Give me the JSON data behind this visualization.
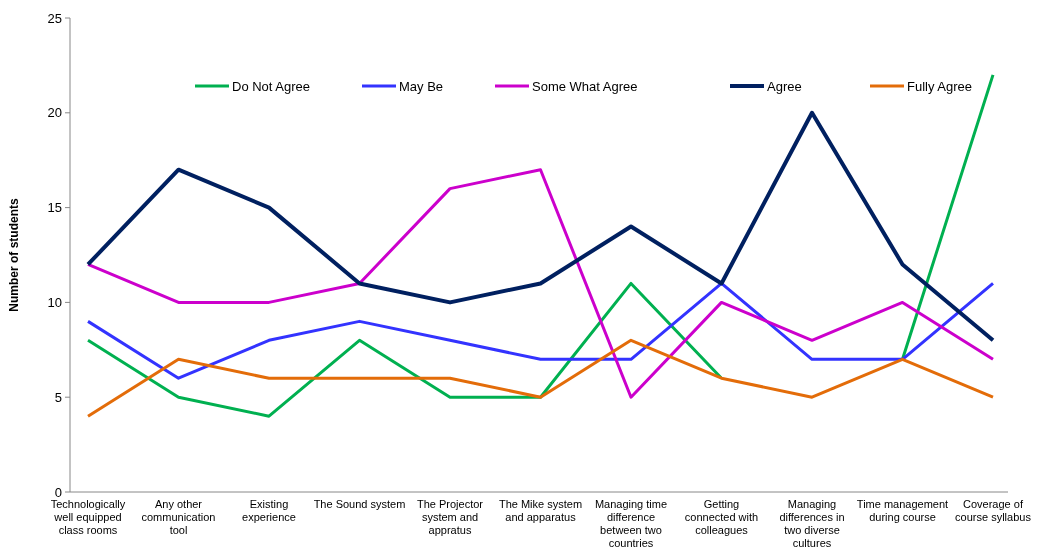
{
  "chart_data": {
    "type": "line",
    "ylabel": "Number of students",
    "categories": [
      "Technologically well equipped class rooms",
      "Any other communication tool",
      "Existing experience",
      "The Sound system",
      "The Projector system and appratus",
      "The Mike system and apparatus",
      "Managing time difference between two countries",
      "Getting connected with colleagues",
      "Managing differences in two diverse cultures",
      "Time management during course",
      "Coverage of course syllabus"
    ],
    "series": [
      {
        "name": "Do Not Agree",
        "color": "#00b050",
        "values": [
          8,
          5,
          4,
          8,
          5,
          5,
          11,
          6,
          null,
          7,
          22
        ]
      },
      {
        "name": "May Be",
        "color": "#3333ff",
        "values": [
          9,
          6,
          8,
          9,
          8,
          7,
          7,
          11,
          7,
          7,
          11
        ]
      },
      {
        "name": "Some What Agree",
        "color": "#cc00cc",
        "values": [
          12,
          10,
          10,
          11,
          16,
          17,
          5,
          10,
          8,
          10,
          7
        ]
      },
      {
        "name": "Agree",
        "color": "#002060",
        "values": [
          12,
          17,
          15,
          11,
          10,
          11,
          14,
          11,
          20,
          12,
          8
        ]
      },
      {
        "name": "Fully Agree",
        "color": "#e36c09",
        "values": [
          4,
          7,
          6,
          6,
          6,
          5,
          8,
          6,
          5,
          7,
          5
        ]
      }
    ],
    "ylim": [
      0,
      25
    ],
    "yticks": [
      0,
      5,
      10,
      15,
      20,
      25
    ],
    "legend": "top",
    "grid": false,
    "marker": "none"
  }
}
